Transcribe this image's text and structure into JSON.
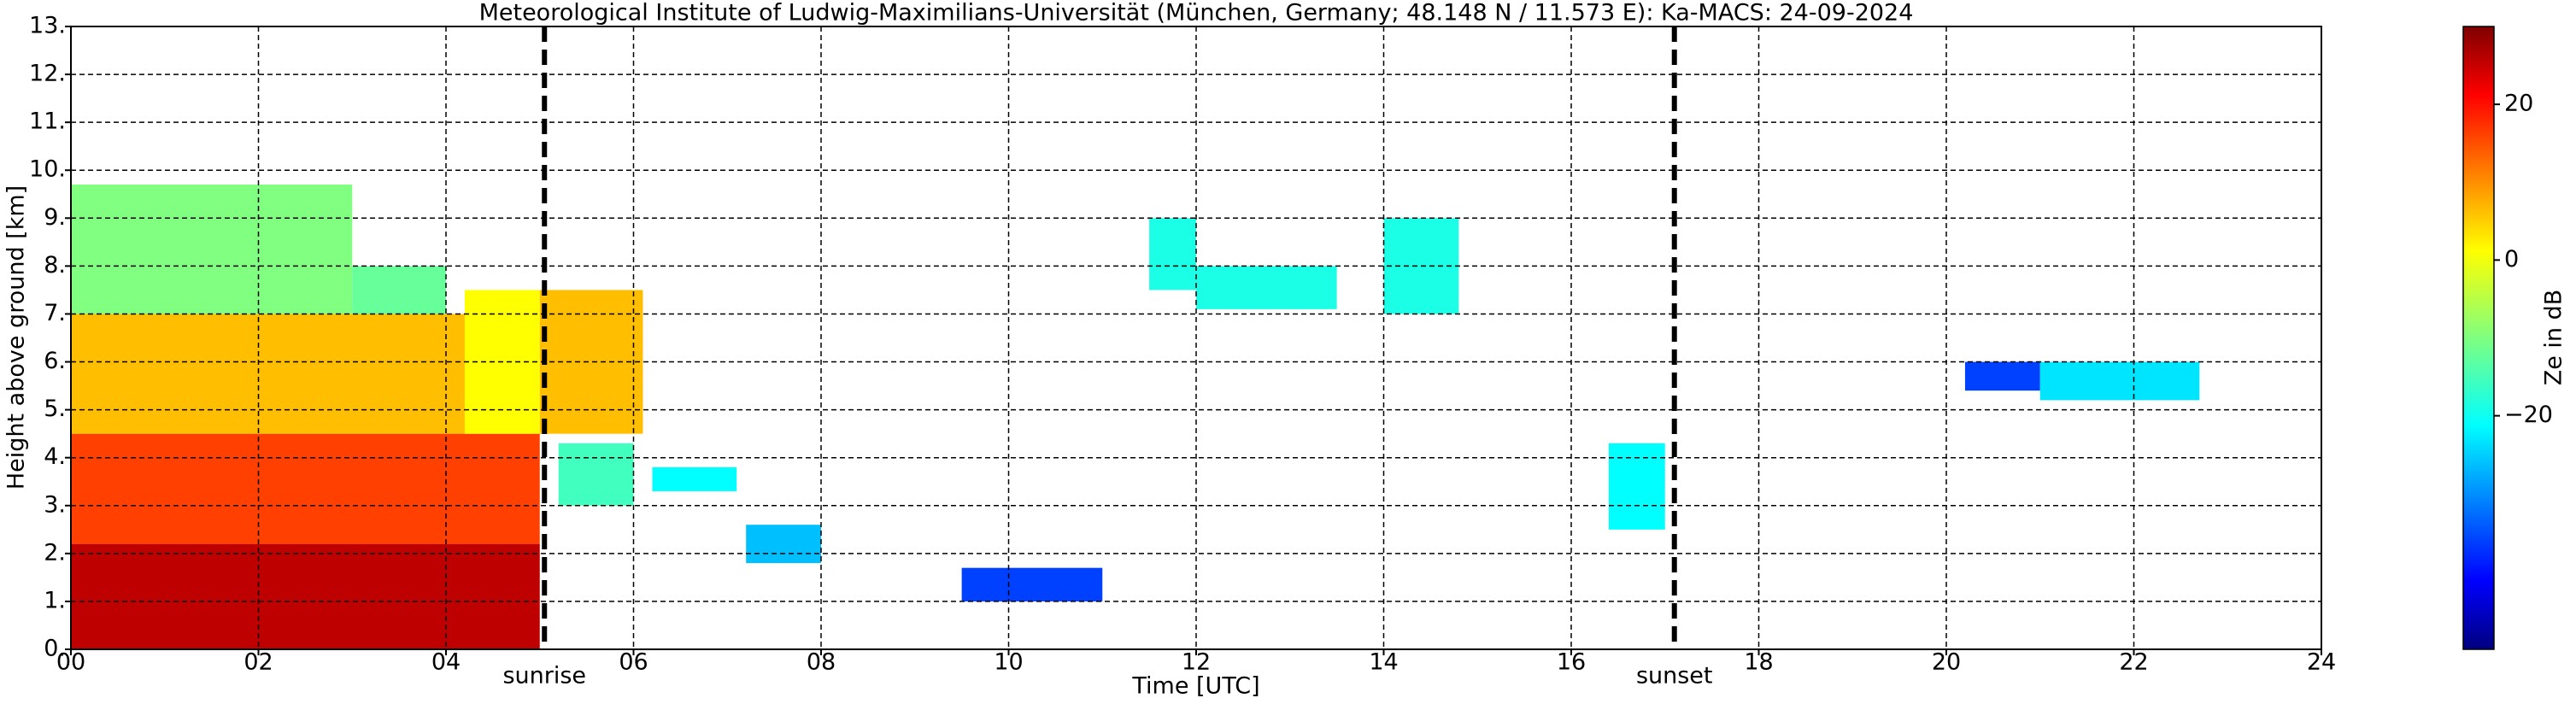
{
  "chart_data": {
    "type": "heatmap",
    "title": "Meteorological Institute of Ludwig-Maximilians-Universität (München, Germany; 48.148 N / 11.573 E):    Ka-MACS: 24-09-2024",
    "xlabel": "Time [UTC]",
    "ylabel": "Height above ground [km]",
    "xlim": [
      0,
      24
    ],
    "xticks": [
      {
        "value": 0,
        "label": "00"
      },
      {
        "value": 2,
        "label": "02"
      },
      {
        "value": 4,
        "label": "04"
      },
      {
        "value": 6,
        "label": "06"
      },
      {
        "value": 8,
        "label": "08"
      },
      10,
      12,
      14,
      16,
      18,
      20,
      22,
      24
    ],
    "ylim": [
      0,
      13
    ],
    "yticks": [
      {
        "value": 0,
        "label": "0."
      },
      {
        "value": 1,
        "label": "1."
      },
      {
        "value": 2,
        "label": "2."
      },
      {
        "value": 3,
        "label": "3."
      },
      {
        "value": 4,
        "label": "4."
      },
      {
        "value": 5,
        "label": "5."
      },
      {
        "value": 6,
        "label": "6."
      },
      {
        "value": 7,
        "label": "7."
      },
      {
        "value": 8,
        "label": "8."
      },
      {
        "value": 9,
        "label": "9."
      },
      {
        "value": 10,
        "label": "10."
      },
      {
        "value": 11,
        "label": "11."
      },
      {
        "value": 12,
        "label": "12."
      },
      {
        "value": 13,
        "label": "13."
      }
    ],
    "grid": true,
    "colorbar": {
      "label": "Ze in dB",
      "lim": [
        -50,
        30
      ],
      "ticks": [
        {
          "value": -20,
          "label": "−20"
        },
        0,
        20
      ],
      "colormap": "jet"
    },
    "cells": [
      {
        "x": [
          0,
          5
        ],
        "y": [
          0,
          2.2
        ],
        "value": 25
      },
      {
        "x": [
          0,
          5
        ],
        "y": [
          2.2,
          4.5
        ],
        "value": 15
      },
      {
        "x": [
          0,
          4.2
        ],
        "y": [
          4.5,
          7
        ],
        "value": 5
      },
      {
        "x": [
          4.2,
          5
        ],
        "y": [
          4.5,
          7.5
        ],
        "value": 0
      },
      {
        "x": [
          0,
          3
        ],
        "y": [
          7,
          9.7
        ],
        "value": -10
      },
      {
        "x": [
          3,
          4
        ],
        "y": [
          7,
          8
        ],
        "value": -12
      },
      {
        "x": [
          5,
          6.1
        ],
        "y": [
          4.5,
          7.5
        ],
        "value": 5
      },
      {
        "x": [
          5.2,
          6
        ],
        "y": [
          3,
          4.3
        ],
        "value": -15
      },
      {
        "x": [
          6.2,
          7.1
        ],
        "y": [
          3.3,
          3.8
        ],
        "value": -20
      },
      {
        "x": [
          7.2,
          8
        ],
        "y": [
          1.8,
          2.6
        ],
        "value": -25
      },
      {
        "x": [
          11.5,
          12
        ],
        "y": [
          7.5,
          9
        ],
        "value": -18
      },
      {
        "x": [
          12,
          13.5
        ],
        "y": [
          7.1,
          8
        ],
        "value": -18
      },
      {
        "x": [
          14,
          14.8
        ],
        "y": [
          7,
          9
        ],
        "value": -18
      },
      {
        "x": [
          9.5,
          11
        ],
        "y": [
          1,
          1.7
        ],
        "value": -35
      },
      {
        "x": [
          16.4,
          17
        ],
        "y": [
          2.5,
          4.3
        ],
        "value": -20
      },
      {
        "x": [
          20.2,
          21
        ],
        "y": [
          5.4,
          6
        ],
        "value": -35
      },
      {
        "x": [
          21,
          22.7
        ],
        "y": [
          5.2,
          6
        ],
        "value": -22
      }
    ],
    "annotations": [
      {
        "text": "sunrise",
        "x": 5.05
      },
      {
        "text": "sunset",
        "x": 17.1
      }
    ]
  }
}
